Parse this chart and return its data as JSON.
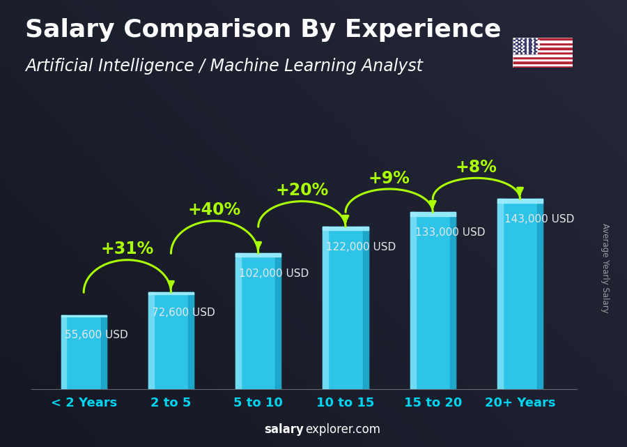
{
  "title": "Salary Comparison By Experience",
  "subtitle": "Artificial Intelligence / Machine Learning Analyst",
  "categories": [
    "< 2 Years",
    "2 to 5",
    "5 to 10",
    "10 to 15",
    "15 to 20",
    "20+ Years"
  ],
  "values": [
    55600,
    72600,
    102000,
    122000,
    133000,
    143000
  ],
  "labels": [
    "55,600 USD",
    "72,600 USD",
    "102,000 USD",
    "122,000 USD",
    "133,000 USD",
    "143,000 USD"
  ],
  "pct_changes": [
    "+31%",
    "+40%",
    "+20%",
    "+9%",
    "+8%"
  ],
  "bar_color_main": "#2ec4e8",
  "bar_color_light": "#7adff5",
  "bar_color_dark": "#1a9bbf",
  "bar_color_top": "#a0eeff",
  "bg_color": "#1a2030",
  "text_white": "#ffffff",
  "text_label": "#e8e8e8",
  "text_green": "#aaff00",
  "text_cyan": "#00d4f0",
  "ylabel": "Average Yearly Salary",
  "footer_bold": "salary",
  "footer_normal": "explorer.com",
  "title_fontsize": 26,
  "subtitle_fontsize": 17,
  "label_fontsize": 11,
  "pct_fontsize": 17,
  "cat_fontsize": 13,
  "ylim_max": 175000,
  "bar_width": 0.52,
  "arrow_color": "#aaff00",
  "arrow_lw": 2.2
}
